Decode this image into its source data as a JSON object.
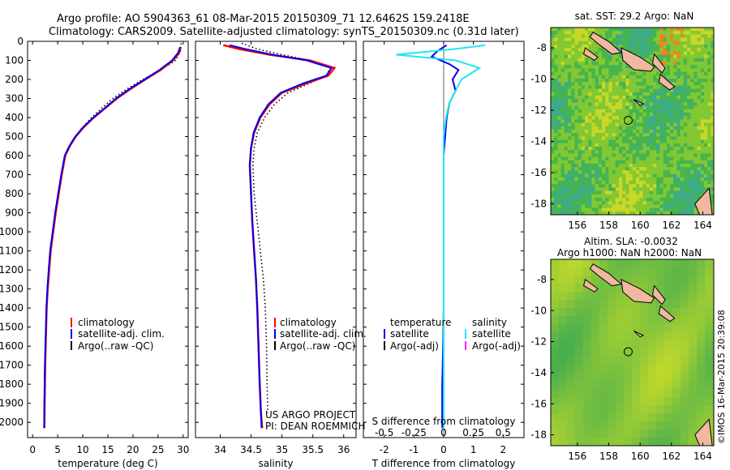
{
  "header": {
    "title_line1": "Argo profile: AO 5904363_61 08-Mar-2015 20150309_71 12.6462S 159.2418E",
    "title_line2": "Climatology: CARS2009. Satellite-adjusted climatology: synTS_20150309.nc (0.31d later)"
  },
  "credit": {
    "project": "US ARGO PROJECT",
    "pi": "PI: DEAN ROEMMICH",
    "stamp": "©IMOS 16-Mar-2015 20:39:08"
  },
  "colors": {
    "climatology": "#ff0000",
    "satellite": "#0000ee",
    "argo": "#000000",
    "sal_satellite": "#22e6f0",
    "sal_argo": "#ff22ff"
  },
  "chart_data": [
    {
      "type": "line",
      "id": "temperature",
      "xlabel": "temperature (deg C)",
      "ylabel": "",
      "xlim": [
        -1,
        31
      ],
      "ylim": [
        2080,
        0
      ],
      "xticks": [
        0,
        5,
        10,
        15,
        20,
        25,
        30
      ],
      "yticks": [
        0,
        100,
        200,
        300,
        400,
        500,
        600,
        700,
        800,
        900,
        1000,
        1100,
        1200,
        1300,
        1400,
        1500,
        1600,
        1700,
        1800,
        1900,
        2000
      ],
      "legend": [
        "climatology",
        "satellite-adj. clim.",
        "Argo(..raw -QC)"
      ],
      "series": [
        {
          "name": "climatology",
          "x": [
            29.5,
            29.2,
            28.0,
            25.5,
            22.5,
            19.5,
            16.8,
            14.5,
            12.2,
            10.2,
            8.6,
            7.4,
            6.5,
            5.8,
            5.2,
            4.6,
            4.1,
            3.6,
            3.3,
            3.0,
            2.8,
            2.7,
            2.5,
            2.4,
            2.35
          ],
          "y": [
            30,
            60,
            100,
            150,
            200,
            250,
            300,
            350,
            400,
            450,
            500,
            550,
            600,
            700,
            800,
            900,
            1000,
            1100,
            1200,
            1300,
            1400,
            1500,
            1700,
            1900,
            2030
          ]
        },
        {
          "name": "satellite-adj. clim.",
          "x": [
            29.4,
            29.0,
            27.8,
            25.3,
            22.3,
            19.3,
            16.6,
            14.4,
            12.1,
            10.1,
            8.5,
            7.3,
            6.4,
            5.7,
            5.1,
            4.5,
            4.0,
            3.5,
            3.2,
            2.95,
            2.75,
            2.65,
            2.45,
            2.35,
            2.3
          ],
          "y": [
            30,
            60,
            100,
            150,
            200,
            250,
            300,
            350,
            400,
            450,
            500,
            550,
            600,
            700,
            800,
            900,
            1000,
            1100,
            1200,
            1300,
            1400,
            1500,
            1700,
            1900,
            2030
          ]
        },
        {
          "name": "Argo(..raw -QC)",
          "x": [
            29.6,
            29.5,
            28.5,
            25.5,
            22.0,
            18.8,
            16.0,
            13.8,
            11.8,
            10.0,
            8.5,
            7.3,
            6.4,
            5.7,
            5.1,
            4.5,
            4.0,
            3.5,
            3.2,
            2.95,
            2.75,
            2.65,
            2.5,
            2.4
          ],
          "y": [
            10,
            50,
            100,
            150,
            200,
            250,
            300,
            350,
            400,
            450,
            500,
            550,
            600,
            700,
            800,
            900,
            1000,
            1100,
            1200,
            1300,
            1400,
            1500,
            1700,
            1950
          ]
        }
      ]
    },
    {
      "type": "line",
      "id": "salinity",
      "xlabel": "salinity",
      "ylabel": "",
      "xlim": [
        33.6,
        36.2
      ],
      "ylim": [
        2080,
        0
      ],
      "xticks": [
        34,
        34.5,
        35,
        35.5,
        36
      ],
      "yticks": [
        0,
        100,
        200,
        300,
        400,
        500,
        600,
        700,
        800,
        900,
        1000,
        1100,
        1200,
        1300,
        1400,
        1500,
        1600,
        1700,
        1800,
        1900,
        2000
      ],
      "legend": [
        "climatology",
        "satellite-adj. clim.",
        "Argo(..raw -QC)"
      ],
      "series": [
        {
          "name": "climatology",
          "x": [
            34.05,
            34.3,
            34.8,
            35.45,
            35.85,
            35.75,
            35.4,
            35.0,
            34.8,
            34.65,
            34.55,
            34.5,
            34.48,
            34.5,
            34.52,
            34.55,
            34.58,
            34.6,
            34.62,
            34.64,
            34.66,
            34.68
          ],
          "y": [
            20,
            40,
            70,
            100,
            140,
            180,
            220,
            270,
            330,
            400,
            480,
            560,
            650,
            800,
            950,
            1100,
            1250,
            1400,
            1600,
            1800,
            1950,
            2030
          ]
        },
        {
          "name": "satellite-adj. clim.",
          "x": [
            34.15,
            34.4,
            34.85,
            35.4,
            35.8,
            35.72,
            35.35,
            34.98,
            34.78,
            34.64,
            34.54,
            34.5,
            34.48,
            34.5,
            34.52,
            34.55,
            34.58,
            34.6,
            34.62,
            34.64,
            34.66,
            34.67
          ],
          "y": [
            20,
            40,
            70,
            100,
            140,
            180,
            220,
            270,
            330,
            400,
            480,
            560,
            650,
            800,
            950,
            1100,
            1250,
            1400,
            1600,
            1800,
            1950,
            2030
          ]
        },
        {
          "name": "Argo(..raw -QC)",
          "x": [
            34.35,
            34.6,
            35.0,
            35.45,
            35.78,
            35.72,
            35.45,
            35.1,
            34.88,
            34.72,
            34.6,
            34.55,
            34.53,
            34.55,
            34.6,
            34.65,
            34.7,
            34.73,
            34.75,
            34.76,
            34.77
          ],
          "y": [
            10,
            40,
            70,
            100,
            140,
            180,
            220,
            270,
            330,
            400,
            480,
            560,
            650,
            800,
            950,
            1100,
            1250,
            1400,
            1600,
            1800,
            1950
          ]
        }
      ]
    },
    {
      "type": "line",
      "id": "difference",
      "xlabel": "T difference from climatology",
      "xlabel2": "S difference from climatology",
      "xlim": [
        -2.7,
        2.7
      ],
      "ylim": [
        2080,
        0
      ],
      "xticks": [
        -2,
        -1,
        0,
        1,
        2
      ],
      "xtick_labels": [
        "-2",
        "-1",
        "0",
        "1",
        "2"
      ],
      "xticks2": [
        -0.5,
        -0.25,
        0,
        0.25,
        0.5
      ],
      "xtick_labels2": [
        "-0.5",
        "-0.25",
        "0",
        "0.25",
        "0.5"
      ],
      "legend_temperature": {
        "heading": "temperature",
        "items": [
          "satellite",
          "Argo(-adj)"
        ]
      },
      "legend_salinity": {
        "heading": "salinity",
        "items": [
          "satellite",
          "Argo(-adj)"
        ]
      },
      "series": [
        {
          "name": "temperature satellite",
          "x": [
            0.1,
            -0.2,
            -0.4,
            0.2,
            0.5,
            0.3,
            0.4,
            0.2,
            0.1,
            0.05,
            0.0,
            0.0,
            0.0,
            0.0,
            0.0,
            -0.02,
            -0.05,
            -0.05
          ],
          "y": [
            20,
            50,
            80,
            120,
            150,
            200,
            260,
            320,
            400,
            500,
            600,
            800,
            1000,
            1200,
            1400,
            1600,
            1800,
            2030
          ]
        },
        {
          "name": "salinity satellite",
          "x": [
            0.35,
            0.1,
            -0.4,
            0.1,
            0.3,
            0.15,
            0.1,
            0.05,
            0.02,
            0.0,
            0.0,
            0.0,
            0.0,
            0.0,
            0.0,
            0.0,
            0.0
          ],
          "y": [
            20,
            40,
            70,
            100,
            140,
            200,
            260,
            320,
            400,
            500,
            700,
            900,
            1100,
            1300,
            1500,
            1800,
            2030
          ]
        }
      ]
    },
    {
      "type": "heatmap",
      "id": "sst_map",
      "title": "sat. SST: 29.2 Argo: NaN",
      "xlim": [
        154.3,
        164.7
      ],
      "ylim": [
        -18.7,
        -6.7
      ],
      "xticks": [
        156,
        158,
        160,
        162,
        164
      ],
      "yticks": [
        -8,
        -10,
        -12,
        -14,
        -16,
        -18
      ],
      "marker": {
        "lon": 159.24,
        "lat": -12.65
      }
    },
    {
      "type": "heatmap",
      "id": "sla_map",
      "title": "Altim. SLA: -0.0032",
      "title2": "Argo h1000: NaN h2000: NaN",
      "xlim": [
        154.3,
        164.7
      ],
      "ylim": [
        -18.7,
        -6.7
      ],
      "xticks": [
        156,
        158,
        160,
        162,
        164
      ],
      "yticks": [
        -8,
        -10,
        -12,
        -14,
        -16,
        -18
      ],
      "marker": {
        "lon": 159.24,
        "lat": -12.65
      }
    }
  ]
}
